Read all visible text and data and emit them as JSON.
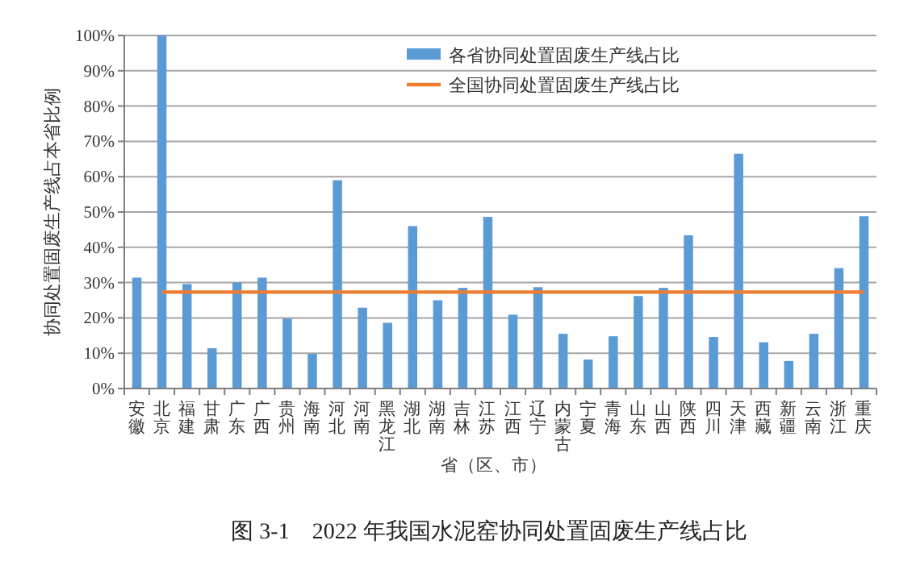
{
  "chart_data": {
    "type": "bar",
    "title": "图 3-1　2022 年我国水泥窑协同处置固废生产线占比",
    "xlabel": "省（区、市）",
    "ylabel": "协同处置固废生产线占本省比例",
    "categories": [
      "安徽",
      "北京",
      "福建",
      "甘肃",
      "广东",
      "广西",
      "贵州",
      "海南",
      "河北",
      "河南",
      "黑龙江",
      "湖北",
      "湖南",
      "吉林",
      "江苏",
      "江西",
      "辽宁",
      "内蒙古",
      "宁夏",
      "青海",
      "山东",
      "山西",
      "陕西",
      "四川",
      "天津",
      "西藏",
      "新疆",
      "云南",
      "浙江",
      "重庆"
    ],
    "series": [
      {
        "name": "各省协同处置固废生产线占比",
        "color": "#5b9bd5",
        "values": [
          31.4,
          100,
          29.6,
          11.4,
          30.0,
          31.4,
          19.8,
          9.8,
          59.0,
          22.9,
          18.6,
          46.0,
          25.0,
          28.5,
          48.6,
          20.9,
          28.7,
          15.5,
          8.2,
          14.8,
          26.2,
          28.5,
          43.4,
          14.6,
          66.5,
          13.1,
          7.8,
          15.5,
          34.1,
          48.8
        ]
      },
      {
        "name": "全国协同处置固废生产线占比",
        "type": "line",
        "color": "#ed7d31",
        "values": [
          null,
          27.3,
          27.3,
          27.3,
          27.3,
          27.3,
          27.3,
          27.3,
          27.3,
          27.3,
          27.3,
          27.3,
          27.3,
          27.3,
          27.3,
          27.3,
          27.3,
          27.3,
          27.3,
          27.3,
          27.3,
          27.3,
          27.3,
          27.3,
          27.3,
          27.3,
          27.3,
          27.3,
          27.3,
          27.3
        ]
      }
    ],
    "ylim": [
      0,
      100
    ],
    "yticks": [
      {
        "value": 0,
        "label": "0%"
      },
      {
        "value": 10,
        "label": "10%"
      },
      {
        "value": 20,
        "label": "20%"
      },
      {
        "value": 30,
        "label": "30%"
      },
      {
        "value": 40,
        "label": "40%"
      },
      {
        "value": 50,
        "label": "50%"
      },
      {
        "value": 60,
        "label": "60%"
      },
      {
        "value": 70,
        "label": "70%"
      },
      {
        "value": 80,
        "label": "80%"
      },
      {
        "value": 90,
        "label": "90%"
      },
      {
        "value": 100,
        "label": "100%"
      }
    ],
    "grid": "y",
    "legend": "top"
  }
}
